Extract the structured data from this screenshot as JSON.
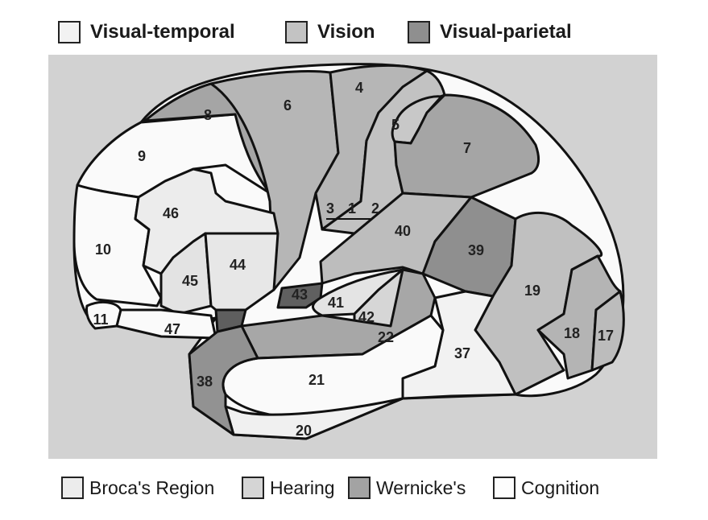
{
  "legend_top": [
    {
      "label": "Visual-temporal",
      "color": "#f2f2f2"
    },
    {
      "label": "Vision",
      "color": "#c3c3c3"
    },
    {
      "label": "Visual-parietal",
      "color": "#8f8f8f"
    }
  ],
  "legend_bottom": [
    {
      "label": "Broca's Region",
      "color": "#ececec"
    },
    {
      "label": "Hearing",
      "color": "#d5d5d5"
    },
    {
      "label": "Wernicke's",
      "color": "#a3a3a3"
    },
    {
      "label": "Cognition",
      "color": "#fdfdfd"
    }
  ],
  "colors": {
    "panel_background": "#d2d2d2",
    "white": "#fafafa",
    "light": "#ebebeb",
    "mid": "#b4b4b4",
    "dark": "#8a8a8a",
    "darkest": "#5e5e5e"
  },
  "regions": {
    "r9": "9",
    "r8": "8",
    "r6": "6",
    "r4": "4",
    "r5": "5",
    "r7": "7",
    "r10": "10",
    "r46": "46",
    "r45": "45",
    "r44": "44",
    "r11": "11",
    "r47": "47",
    "r43": "43",
    "r41": "41",
    "r42": "42",
    "r22": "22",
    "r40": "40",
    "r39": "39",
    "r19": "19",
    "r18": "18",
    "r17": "17",
    "r37": "37",
    "r21": "21",
    "r20": "20",
    "r38": "38",
    "r3": "3",
    "r1": "1",
    "r2": "2"
  }
}
